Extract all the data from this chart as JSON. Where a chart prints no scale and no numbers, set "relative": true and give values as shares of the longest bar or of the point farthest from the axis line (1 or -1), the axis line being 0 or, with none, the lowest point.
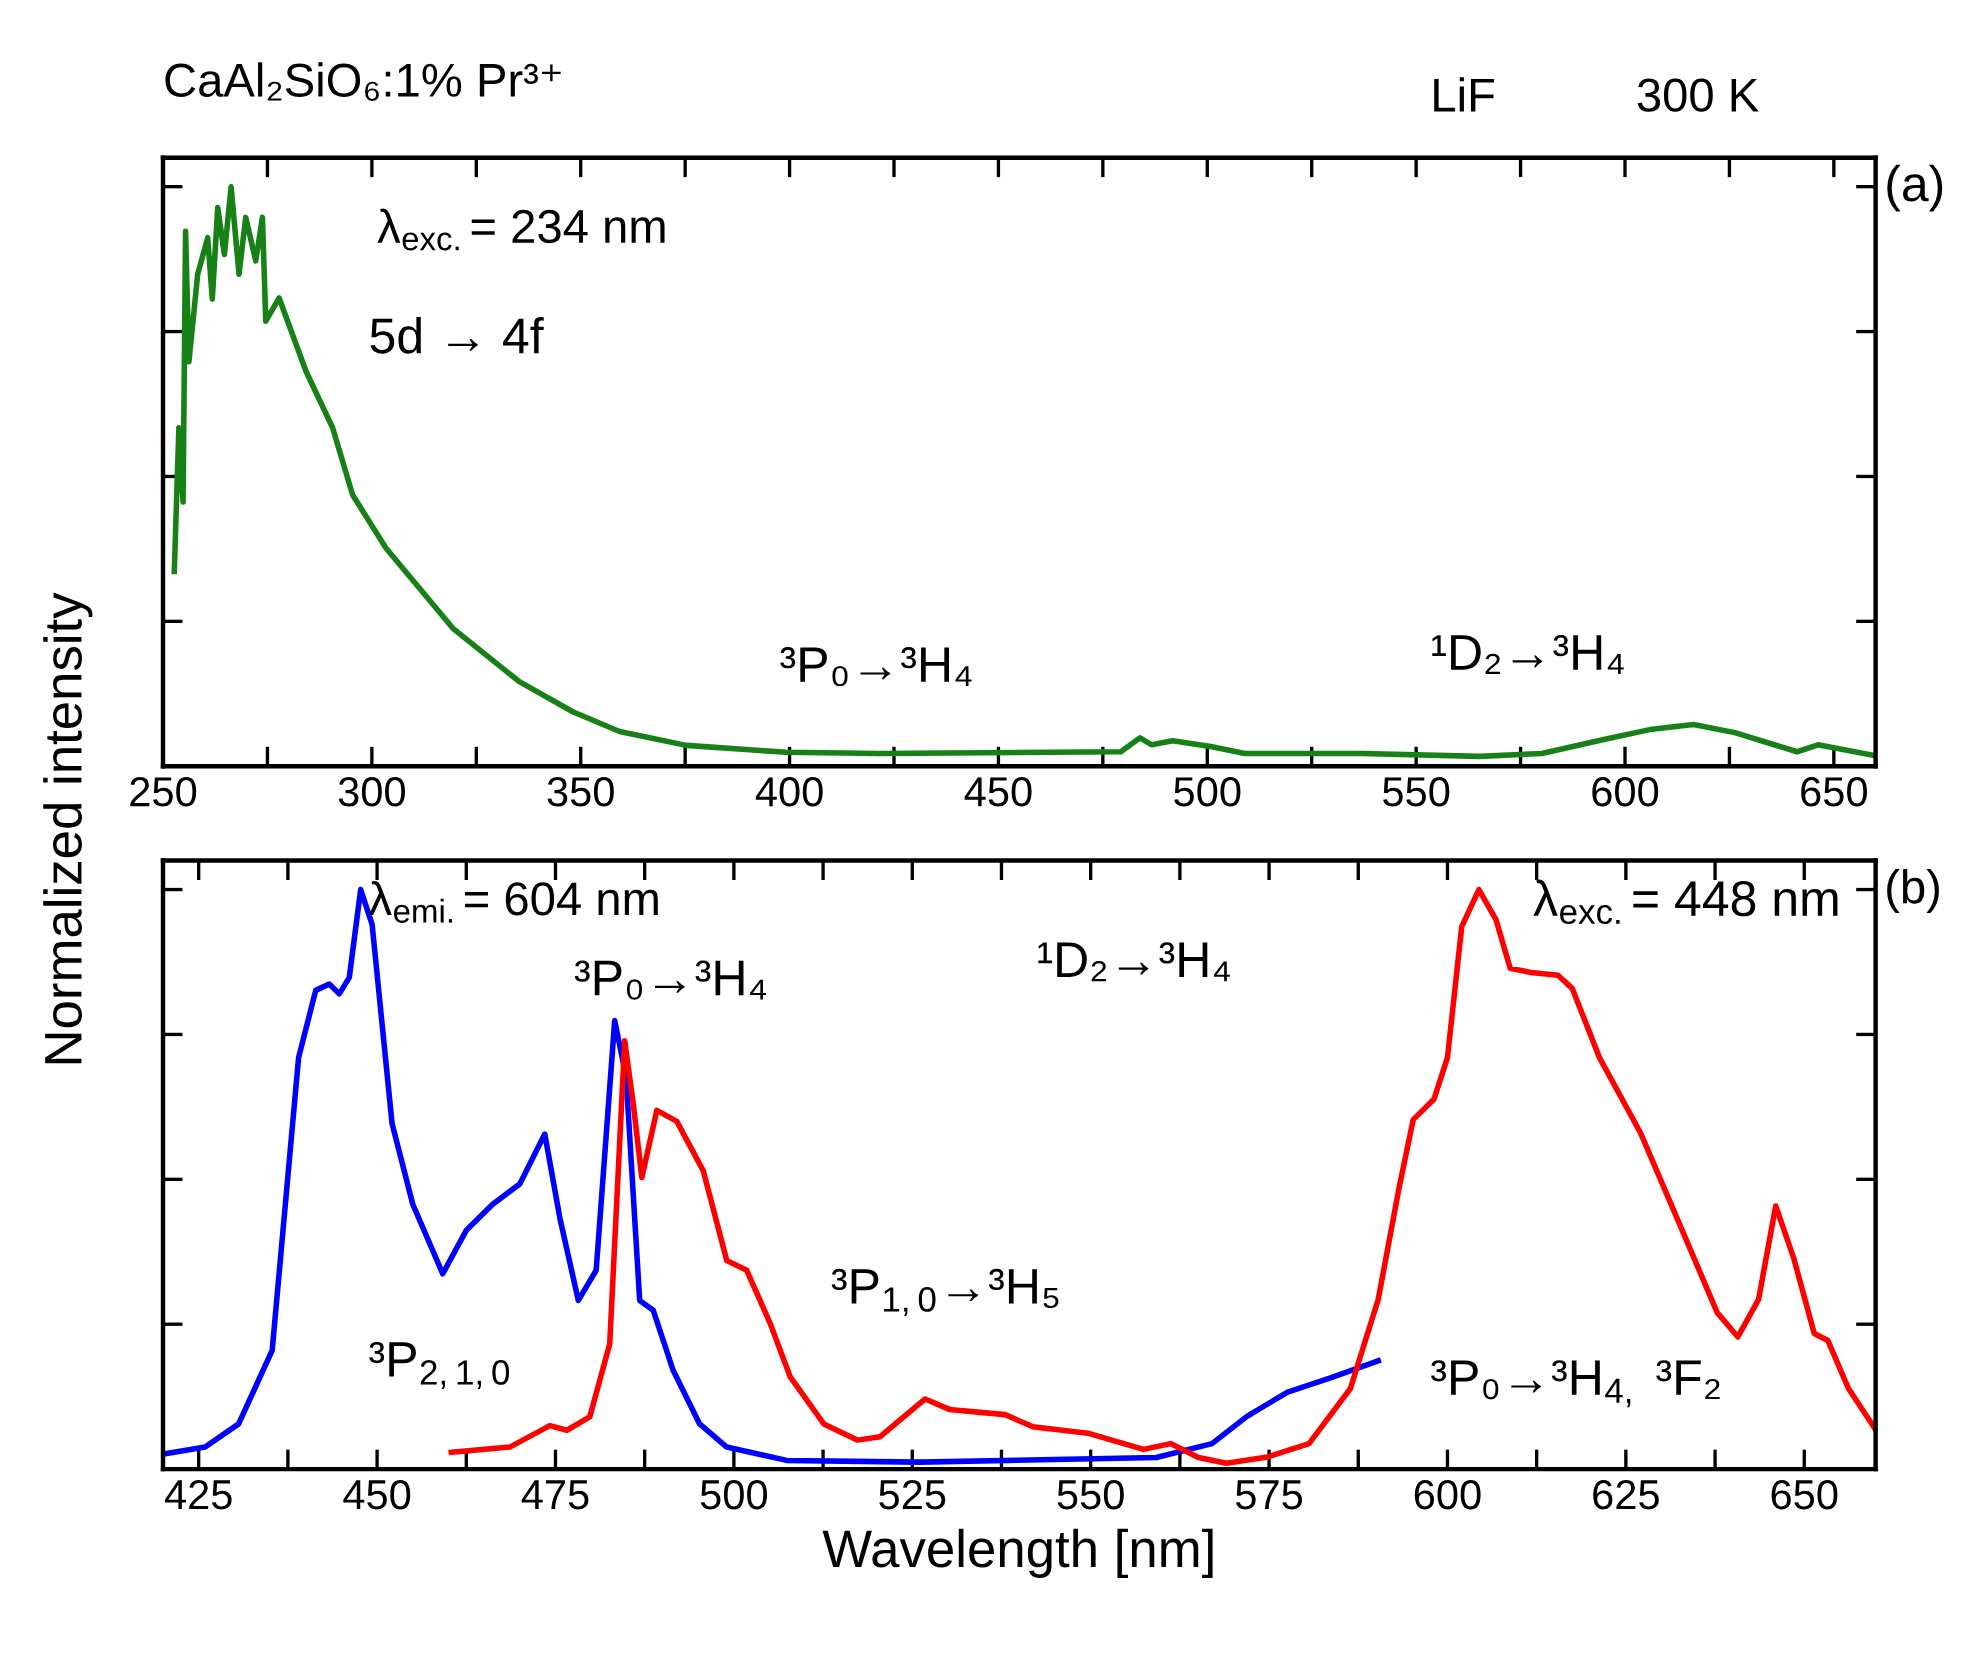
{
  "chart_data": [
    {
      "type": "line",
      "title": "CaAl₂SiO₆:1% Pr³⁺",
      "ylabel": "Normalized intensity",
      "relative": true,
      "tick_labels": "x",
      "xlim": [
        250,
        660
      ],
      "xticks": [
        250,
        {
          "value": 275,
          "label": null
        },
        300,
        {
          "value": 325,
          "label": null
        },
        350,
        {
          "value": 375,
          "label": null
        },
        400,
        {
          "value": 425,
          "label": null
        },
        450,
        {
          "value": 475,
          "label": null
        },
        500,
        {
          "value": 525,
          "label": null
        },
        550,
        {
          "value": 575,
          "label": null
        },
        600,
        {
          "value": 625,
          "label": null
        },
        650
      ],
      "annotations": [
        "LiF",
        "300 K",
        "(a)",
        "λ$_{exc.}$= 234 nm",
        "5d → 4f",
        "³P₀→³H₄",
        "¹D₂→³H₄"
      ],
      "series": [
        {
          "color": "#178017",
          "x": [
            252.7,
            253.8,
            254.8,
            255.4,
            256.2,
            258.3,
            260.7,
            261.8,
            263.1,
            264.7,
            266.3,
            268.2,
            269.8,
            272.2,
            273.8,
            274.6,
            277.8,
            284.2,
            290.6,
            295.4,
            303.4,
            311.4,
            319.4,
            327.3,
            335.3,
            348.1,
            359.3,
            375.3,
            399.2,
            421.5,
            479.3,
            483.9,
            486.7,
            491.7,
            500.8,
            509.0,
            537.1,
            565.2,
            580.1,
            594.9,
            606.5,
            616.4,
            626.3,
            641.2,
            646.2,
            659.4
          ],
          "values": [
            0.336,
            0.584,
            0.456,
            0.923,
            0.698,
            0.849,
            0.912,
            0.806,
            0.964,
            0.883,
            1.0,
            0.849,
            0.947,
            0.872,
            0.947,
            0.768,
            0.808,
            0.682,
            0.584,
            0.468,
            0.376,
            0.307,
            0.238,
            0.192,
            0.146,
            0.094,
            0.06,
            0.036,
            0.024,
            0.022,
            0.025,
            0.049,
            0.037,
            0.044,
            0.034,
            0.022,
            0.022,
            0.017,
            0.022,
            0.046,
            0.064,
            0.072,
            0.058,
            0.025,
            0.037,
            0.019
          ]
        }
      ]
    },
    {
      "type": "line",
      "xlabel": "Wavelength [nm]",
      "relative": true,
      "tick_labels": "x",
      "xlim": [
        420,
        660
      ],
      "xticks": [
        425,
        {
          "value": 437.5,
          "label": null
        },
        450,
        {
          "value": 462.5,
          "label": null
        },
        475,
        {
          "value": 487.5,
          "label": null
        },
        500,
        {
          "value": 512.5,
          "label": null
        },
        525,
        {
          "value": 537.5,
          "label": null
        },
        550,
        {
          "value": 562.5,
          "label": null
        },
        575,
        {
          "value": 587.5,
          "label": null
        },
        600,
        {
          "value": 612.5,
          "label": null
        },
        625,
        {
          "value": 637.5,
          "label": null
        },
        650
      ],
      "annotations": [
        "(b)",
        "λ$_{emi.}$= 604 nm",
        "³P₀→³H₄",
        "³P$_{2,1,0}$",
        "³P$_{1,0}$→³H₅",
        "¹D₂→³H₄",
        "λ$_{exc.}$= 448 nm",
        "³P₀→³H$_{4,}$ ³F₂"
      ],
      "series": [
        {
          "color": "#0000ff",
          "x": [
            420.5,
            425.9,
            430.6,
            435.3,
            439.0,
            441.4,
            443.3,
            444.7,
            446.1,
            447.7,
            449.3,
            452.1,
            455.0,
            459.2,
            462.5,
            466.2,
            470.0,
            473.5,
            475.6,
            478.2,
            480.7,
            483.3,
            484.9,
            486.8,
            488.7,
            491.5,
            495.2,
            499.0,
            507.4,
            526.1,
            559.2,
            567.0,
            571.9,
            577.6,
            583.5,
            590.3
          ],
          "values": [
            0.027,
            0.038,
            0.078,
            0.205,
            0.71,
            0.826,
            0.837,
            0.82,
            0.848,
            1.0,
            0.94,
            0.596,
            0.457,
            0.337,
            0.412,
            0.457,
            0.492,
            0.578,
            0.434,
            0.291,
            0.343,
            0.774,
            0.676,
            0.291,
            0.274,
            0.17,
            0.078,
            0.038,
            0.015,
            0.012,
            0.02,
            0.044,
            0.091,
            0.133,
            0.157,
            0.187
          ]
        },
        {
          "color": "#ff0000",
          "x": [
            460.4,
            468.6,
            474.2,
            476.6,
            479.8,
            482.6,
            484.7,
            485.9,
            487.1,
            489.2,
            492.0,
            495.7,
            499.0,
            501.8,
            505.1,
            507.9,
            512.6,
            517.3,
            520.5,
            526.8,
            530.2,
            538.0,
            541.9,
            549.6,
            557.4,
            561.2,
            565.1,
            569.0,
            574.8,
            580.6,
            586.4,
            590.3,
            593.2,
            595.2,
            598.1,
            600.0,
            602.0,
            604.4,
            606.8,
            608.8,
            611.7,
            615.5,
            617.5,
            621.3,
            627.1,
            632.9,
            637.8,
            640.7,
            643.6,
            646.0,
            648.5,
            651.4,
            653.3,
            656.2,
            660.0
          ],
          "values": [
            0.029,
            0.038,
            0.075,
            0.067,
            0.09,
            0.216,
            0.739,
            0.63,
            0.503,
            0.619,
            0.6,
            0.515,
            0.36,
            0.343,
            0.251,
            0.159,
            0.078,
            0.05,
            0.056,
            0.121,
            0.103,
            0.094,
            0.073,
            0.062,
            0.034,
            0.044,
            0.02,
            0.01,
            0.021,
            0.044,
            0.139,
            0.293,
            0.484,
            0.603,
            0.638,
            0.71,
            0.936,
            1.0,
            0.948,
            0.864,
            0.857,
            0.852,
            0.829,
            0.71,
            0.579,
            0.412,
            0.27,
            0.228,
            0.293,
            0.454,
            0.365,
            0.234,
            0.222,
            0.139,
            0.068
          ]
        }
      ]
    }
  ]
}
